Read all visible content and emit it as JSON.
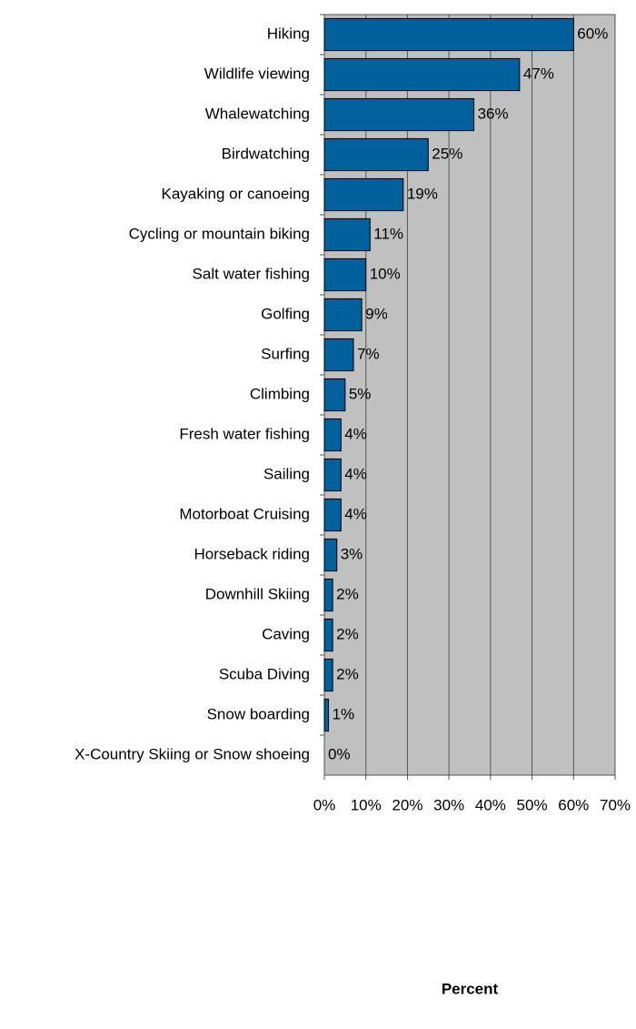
{
  "chart_data": {
    "type": "barh",
    "categories": [
      "Hiking",
      "Wildlife viewing",
      "Whalewatching",
      "Birdwatching",
      "Kayaking or canoeing",
      "Cycling or mountain biking",
      "Salt water fishing",
      "Golfing",
      "Surfing",
      "Climbing",
      "Fresh water fishing",
      "Sailing",
      "Motorboat Cruising",
      "Horseback riding",
      "Downhill Skiing",
      "Caving",
      "Scuba Diving",
      "Snow boarding",
      "X-Country Skiing or Snow shoeing"
    ],
    "values": [
      60,
      47,
      36,
      25,
      19,
      11,
      10,
      9,
      7,
      5,
      4,
      4,
      4,
      3,
      2,
      2,
      2,
      1,
      0
    ],
    "value_labels": [
      "60%",
      "47%",
      "36%",
      "25%",
      "19%",
      "11%",
      "10%",
      "9%",
      "7%",
      "5%",
      "4%",
      "4%",
      "4%",
      "3%",
      "2%",
      "2%",
      "2%",
      "1%",
      "0%"
    ],
    "color": "#00609c",
    "xlabel": "Percent",
    "xlim": [
      0,
      70
    ],
    "xticks": [
      {
        "value": 0,
        "label": "0%"
      },
      {
        "value": 10,
        "label": "10%"
      },
      {
        "value": 20,
        "label": "20%"
      },
      {
        "value": 30,
        "label": "30%"
      },
      {
        "value": 40,
        "label": "40%"
      },
      {
        "value": 50,
        "label": "50%"
      },
      {
        "value": 60,
        "label": "60%"
      },
      {
        "value": 70,
        "label": "70%"
      }
    ],
    "grid": true
  }
}
